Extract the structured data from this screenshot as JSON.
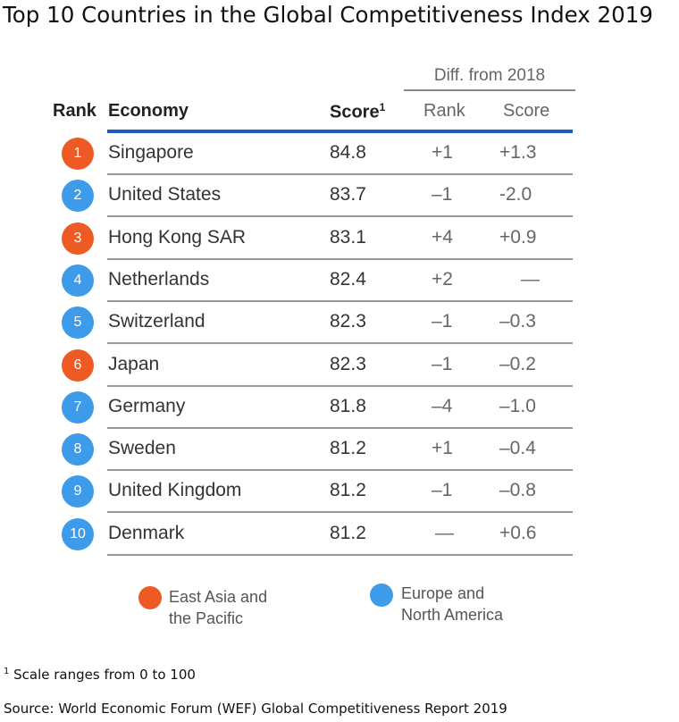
{
  "title": "Top 10 Countries in the Global Competitiveness Index 2019",
  "colors": {
    "east_asia_pacific": "#ee5a24",
    "europe_north_america": "#3d9be9",
    "header_rule": "#1d5bbf"
  },
  "table": {
    "group_header": "Diff. from 2018",
    "headers": {
      "rank": "Rank",
      "economy": "Economy",
      "score": "Score",
      "score_sup": "1",
      "diff_rank": "Rank",
      "diff_score": "Score"
    },
    "rows": [
      {
        "rank": "1",
        "economy": "Singapore",
        "score": "84.8",
        "diff_rank": "+1",
        "diff_score": "+1.3",
        "region": "east_asia_pacific"
      },
      {
        "rank": "2",
        "economy": "United States",
        "score": "83.7",
        "diff_rank": "–1",
        "diff_score": "-2.0",
        "region": "europe_north_america"
      },
      {
        "rank": "3",
        "economy": "Hong Kong SAR",
        "score": "83.1",
        "diff_rank": "+4",
        "diff_score": "+0.9",
        "region": "east_asia_pacific"
      },
      {
        "rank": "4",
        "economy": "Netherlands",
        "score": "82.4",
        "diff_rank": "+2",
        "diff_score": "—",
        "region": "europe_north_america"
      },
      {
        "rank": "5",
        "economy": "Switzerland",
        "score": "82.3",
        "diff_rank": "–1",
        "diff_score": "–0.3",
        "region": "europe_north_america"
      },
      {
        "rank": "6",
        "economy": "Japan",
        "score": "82.3",
        "diff_rank": "–1",
        "diff_score": "–0.2",
        "region": "east_asia_pacific"
      },
      {
        "rank": "7",
        "economy": "Germany",
        "score": "81.8",
        "diff_rank": "–4",
        "diff_score": "–1.0",
        "region": "europe_north_america"
      },
      {
        "rank": "8",
        "economy": "Sweden",
        "score": "81.2",
        "diff_rank": "+1",
        "diff_score": "–0.4",
        "region": "europe_north_america"
      },
      {
        "rank": "9",
        "economy": "United Kingdom",
        "score": "81.2",
        "diff_rank": "–1",
        "diff_score": "–0.8",
        "region": "europe_north_america"
      },
      {
        "rank": "10",
        "economy": "Denmark",
        "score": "81.2",
        "diff_rank": "—",
        "diff_score": "+0.6",
        "region": "europe_north_america"
      }
    ]
  },
  "legend": {
    "east_asia_pacific": [
      "East Asia and",
      "the Pacific"
    ],
    "europe_north_america": [
      "Europe and",
      "North America"
    ]
  },
  "footnote": {
    "marker": "1",
    "text": " Scale ranges from 0 to 100"
  },
  "source": "Source: World Economic Forum (WEF) Global Competitiveness Report 2019",
  "chart_data": {
    "type": "table",
    "title": "Top 10 Countries in the Global Competitiveness Index 2019",
    "columns": [
      "Rank",
      "Economy",
      "Score",
      "Diff. from 2018 Rank",
      "Diff. from 2018 Score"
    ],
    "rows": [
      [
        1,
        "Singapore",
        84.8,
        1,
        1.3
      ],
      [
        2,
        "United States",
        83.7,
        -1,
        -2.0
      ],
      [
        3,
        "Hong Kong SAR",
        83.1,
        4,
        0.9
      ],
      [
        4,
        "Netherlands",
        82.4,
        2,
        null
      ],
      [
        5,
        "Switzerland",
        82.3,
        -1,
        -0.3
      ],
      [
        6,
        "Japan",
        82.3,
        -1,
        -0.2
      ],
      [
        7,
        "Germany",
        81.8,
        -4,
        -1.0
      ],
      [
        8,
        "Sweden",
        81.2,
        1,
        -0.4
      ],
      [
        9,
        "United Kingdom",
        81.2,
        -1,
        -0.8
      ],
      [
        10,
        "Denmark",
        81.2,
        null,
        0.6
      ]
    ]
  }
}
